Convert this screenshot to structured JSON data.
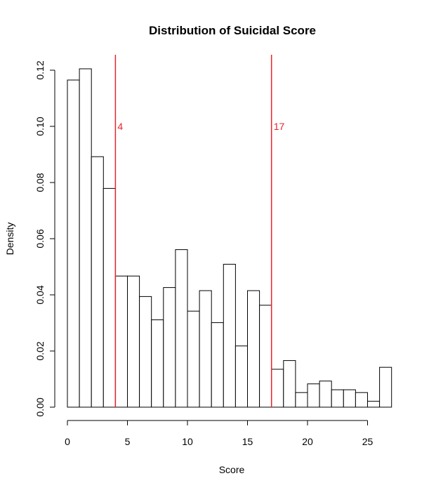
{
  "chart_data": {
    "type": "bar",
    "title": "Distribution of Suicidal Score",
    "xlabel": "Score",
    "ylabel": "Density",
    "xlim": [
      0,
      27
    ],
    "ylim": [
      0,
      0.12
    ],
    "x_ticks": [
      0,
      5,
      10,
      15,
      20,
      25
    ],
    "y_ticks": [
      0.0,
      0.02,
      0.04,
      0.06,
      0.08,
      0.1,
      0.12
    ],
    "y_tick_labels": [
      "0.00",
      "0.02",
      "0.04",
      "0.06",
      "0.08",
      "0.10",
      "0.12"
    ],
    "bin_width": 1,
    "bin_starts": [
      0,
      1,
      2,
      3,
      4,
      5,
      6,
      7,
      8,
      9,
      10,
      11,
      12,
      13,
      14,
      15,
      16,
      17,
      18,
      19,
      20,
      21,
      22,
      23,
      24,
      25,
      26
    ],
    "values": [
      0.1165,
      0.1205,
      0.0892,
      0.0779,
      0.0467,
      0.0467,
      0.0394,
      0.0311,
      0.0426,
      0.0561,
      0.0342,
      0.0415,
      0.0301,
      0.0509,
      0.0218,
      0.0415,
      0.0363,
      0.0135,
      0.0166,
      0.0052,
      0.0083,
      0.0093,
      0.0062,
      0.0062,
      0.0052,
      0.0021,
      0.0142
    ],
    "bar_fill": "#ffffff",
    "bar_stroke": "#000000",
    "grid": false,
    "annotations": [
      {
        "x": 4,
        "label": "4",
        "color": "#e8242c"
      },
      {
        "x": 17,
        "label": "17",
        "color": "#e8242c"
      }
    ]
  }
}
